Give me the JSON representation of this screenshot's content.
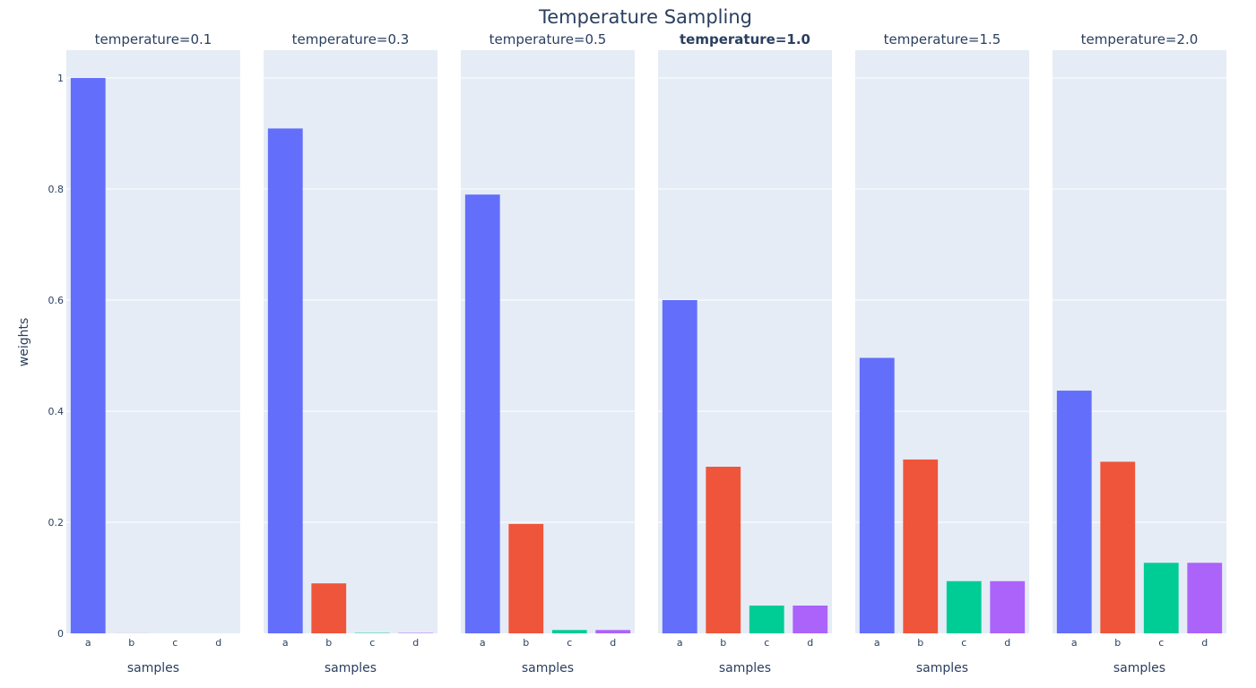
{
  "chart_data": {
    "type": "bar",
    "title": "Temperature Sampling",
    "ylabel": "weights",
    "xlabel": "samples",
    "ylim": [
      0,
      1.05
    ],
    "yticks": [
      "0",
      "0.2",
      "0.4",
      "0.6",
      "0.8",
      "1"
    ],
    "ytick_values": [
      0,
      0.2,
      0.4,
      0.6,
      0.8,
      1.0
    ],
    "categories": [
      "a",
      "b",
      "c",
      "d"
    ],
    "colors": [
      "#636efa",
      "#ef553b",
      "#00cc96",
      "#ab63fa"
    ],
    "plot_background": "#e5ecf6",
    "grid": true,
    "panels": [
      {
        "title": "temperature=0.1",
        "bold": false,
        "values": [
          0.9999,
          0.0001,
          0.0,
          0.0
        ]
      },
      {
        "title": "temperature=0.3",
        "bold": false,
        "values": [
          0.909,
          0.09,
          0.0007,
          0.0007
        ]
      },
      {
        "title": "temperature=0.5",
        "bold": false,
        "values": [
          0.79,
          0.197,
          0.006,
          0.006
        ]
      },
      {
        "title": "temperature=1.0",
        "bold": true,
        "values": [
          0.6,
          0.3,
          0.05,
          0.05
        ]
      },
      {
        "title": "temperature=1.5",
        "bold": false,
        "values": [
          0.496,
          0.313,
          0.094,
          0.094
        ]
      },
      {
        "title": "temperature=2.0",
        "bold": false,
        "values": [
          0.437,
          0.309,
          0.127,
          0.127
        ]
      }
    ]
  }
}
